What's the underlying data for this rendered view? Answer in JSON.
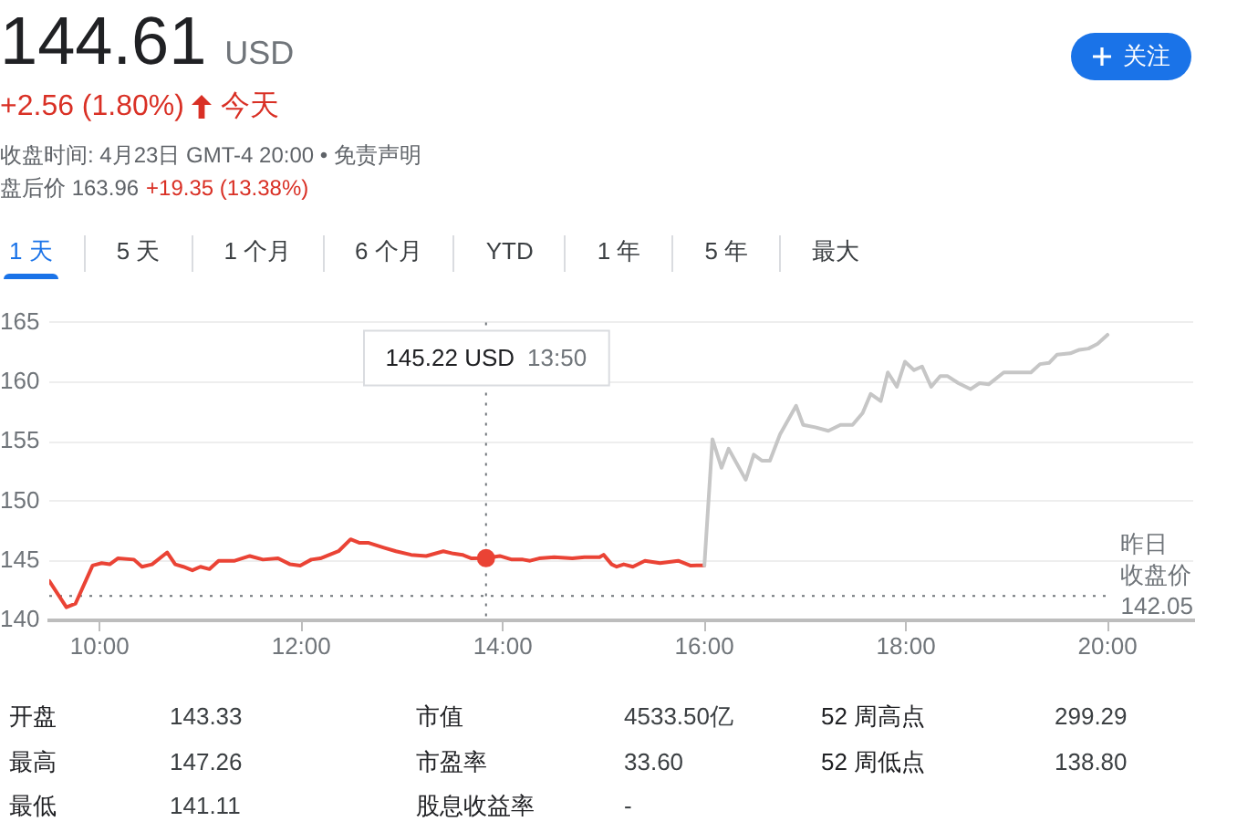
{
  "chart_data": {
    "type": "line",
    "title": "144.61",
    "annotations": [
      "USD",
      "+2.56 (1.80%)",
      "今天",
      "收盘时间: 4月23日 GMT-4 20:00 • 免责声明",
      "盘后价 163.96",
      "+19.35 (13.38%)",
      "关注",
      "1 天",
      "5 天",
      "1 个月",
      "6 个月",
      "YTD",
      "1 年",
      "5 年",
      "最大",
      "145.22 USD",
      "13:50",
      "开盘",
      "143.33",
      "市值",
      "4533.50亿",
      "52 周高点",
      "299.29",
      "最高",
      "147.26",
      "市盈率",
      "33.60",
      "52 周低点",
      "138.80",
      "最低",
      "141.11",
      "股息收益率",
      "-"
    ],
    "series": [
      {
        "color": "#ea4335",
        "x": [
          9.5,
          9.67,
          9.76,
          9.93,
          10.02,
          10.1,
          10.18,
          10.34,
          10.42,
          10.52,
          10.67,
          10.75,
          10.83,
          10.92,
          11.0,
          11.09,
          11.18,
          11.34,
          11.49,
          11.62,
          11.77,
          11.89,
          11.99,
          12.1,
          12.19,
          12.37,
          12.49,
          12.58,
          12.67,
          12.82,
          12.94,
          13.09,
          13.24,
          13.41,
          13.51,
          13.6,
          13.69,
          13.8333,
          13.97,
          14.09,
          14.2,
          14.27,
          14.36,
          14.51,
          14.69,
          14.81,
          14.96,
          15.0,
          15.08,
          15.13,
          15.2,
          15.29,
          15.41,
          15.56,
          15.74,
          15.86,
          16.0
        ],
        "values": [
          143.3,
          141.1,
          141.4,
          144.6,
          144.8,
          144.7,
          145.2,
          145.1,
          144.5,
          144.7,
          145.7,
          144.7,
          144.5,
          144.2,
          144.5,
          144.3,
          145.0,
          145.0,
          145.4,
          145.1,
          145.2,
          144.7,
          144.6,
          145.1,
          145.2,
          145.8,
          146.8,
          146.5,
          146.5,
          146.1,
          145.8,
          145.5,
          145.4,
          145.8,
          145.6,
          145.5,
          145.2,
          145.22,
          145.4,
          145.1,
          145.1,
          145.0,
          145.2,
          145.3,
          145.2,
          145.3,
          145.3,
          145.5,
          144.7,
          144.5,
          144.7,
          144.5,
          145.0,
          144.8,
          145.0,
          144.6,
          144.61
        ]
      },
      {
        "color": "#c6c6c6",
        "x": [
          16.0,
          16.08,
          16.17,
          16.24,
          16.41,
          16.49,
          16.57,
          16.65,
          16.75,
          16.91,
          16.98,
          17.1,
          17.23,
          17.35,
          17.47,
          17.57,
          17.65,
          17.75,
          17.82,
          17.91,
          17.99,
          18.08,
          18.16,
          18.25,
          18.34,
          18.41,
          18.52,
          18.64,
          18.73,
          18.82,
          18.97,
          19.09,
          19.24,
          19.33,
          19.42,
          19.5,
          19.63,
          19.72,
          19.81,
          19.9,
          20.0
        ],
        "values": [
          144.61,
          155.2,
          152.8,
          154.4,
          151.8,
          153.9,
          153.4,
          153.4,
          155.6,
          158.0,
          156.4,
          156.2,
          155.9,
          156.4,
          156.4,
          157.4,
          159.0,
          158.4,
          160.8,
          159.6,
          161.7,
          161.0,
          161.3,
          159.6,
          160.5,
          160.5,
          159.9,
          159.4,
          159.9,
          159.8,
          160.8,
          160.8,
          160.8,
          161.5,
          161.6,
          162.3,
          162.4,
          162.7,
          162.8,
          163.2,
          163.96
        ]
      },
      {
        "type": "scatter",
        "color": "#ea4335",
        "x": [
          13.8333
        ],
        "values": [
          145.22
        ]
      }
    ],
    "xlim": [
      9.5,
      20.85
    ],
    "xticks": [
      {
        "value": 10,
        "label": "10:00"
      },
      {
        "value": 12,
        "label": "12:00"
      },
      {
        "value": 14,
        "label": "14:00"
      },
      {
        "value": 16,
        "label": "16:00"
      },
      {
        "value": 18,
        "label": "18:00"
      },
      {
        "value": 20,
        "label": "20:00"
      }
    ],
    "ylim": [
      140,
      165
    ],
    "yticks": [
      140,
      145,
      150,
      155,
      160,
      165
    ],
    "grid": "y",
    "line_style": "solid",
    "ref_lines": [
      {
        "axis": "y",
        "value": 142.05,
        "label": "昨日收盘价\n142.05",
        "line_style": "dotted",
        "color": "#70757a"
      },
      {
        "axis": "x",
        "value": 13.8333,
        "label": null,
        "line_style": "dotted",
        "color": "#70757a"
      }
    ]
  }
}
